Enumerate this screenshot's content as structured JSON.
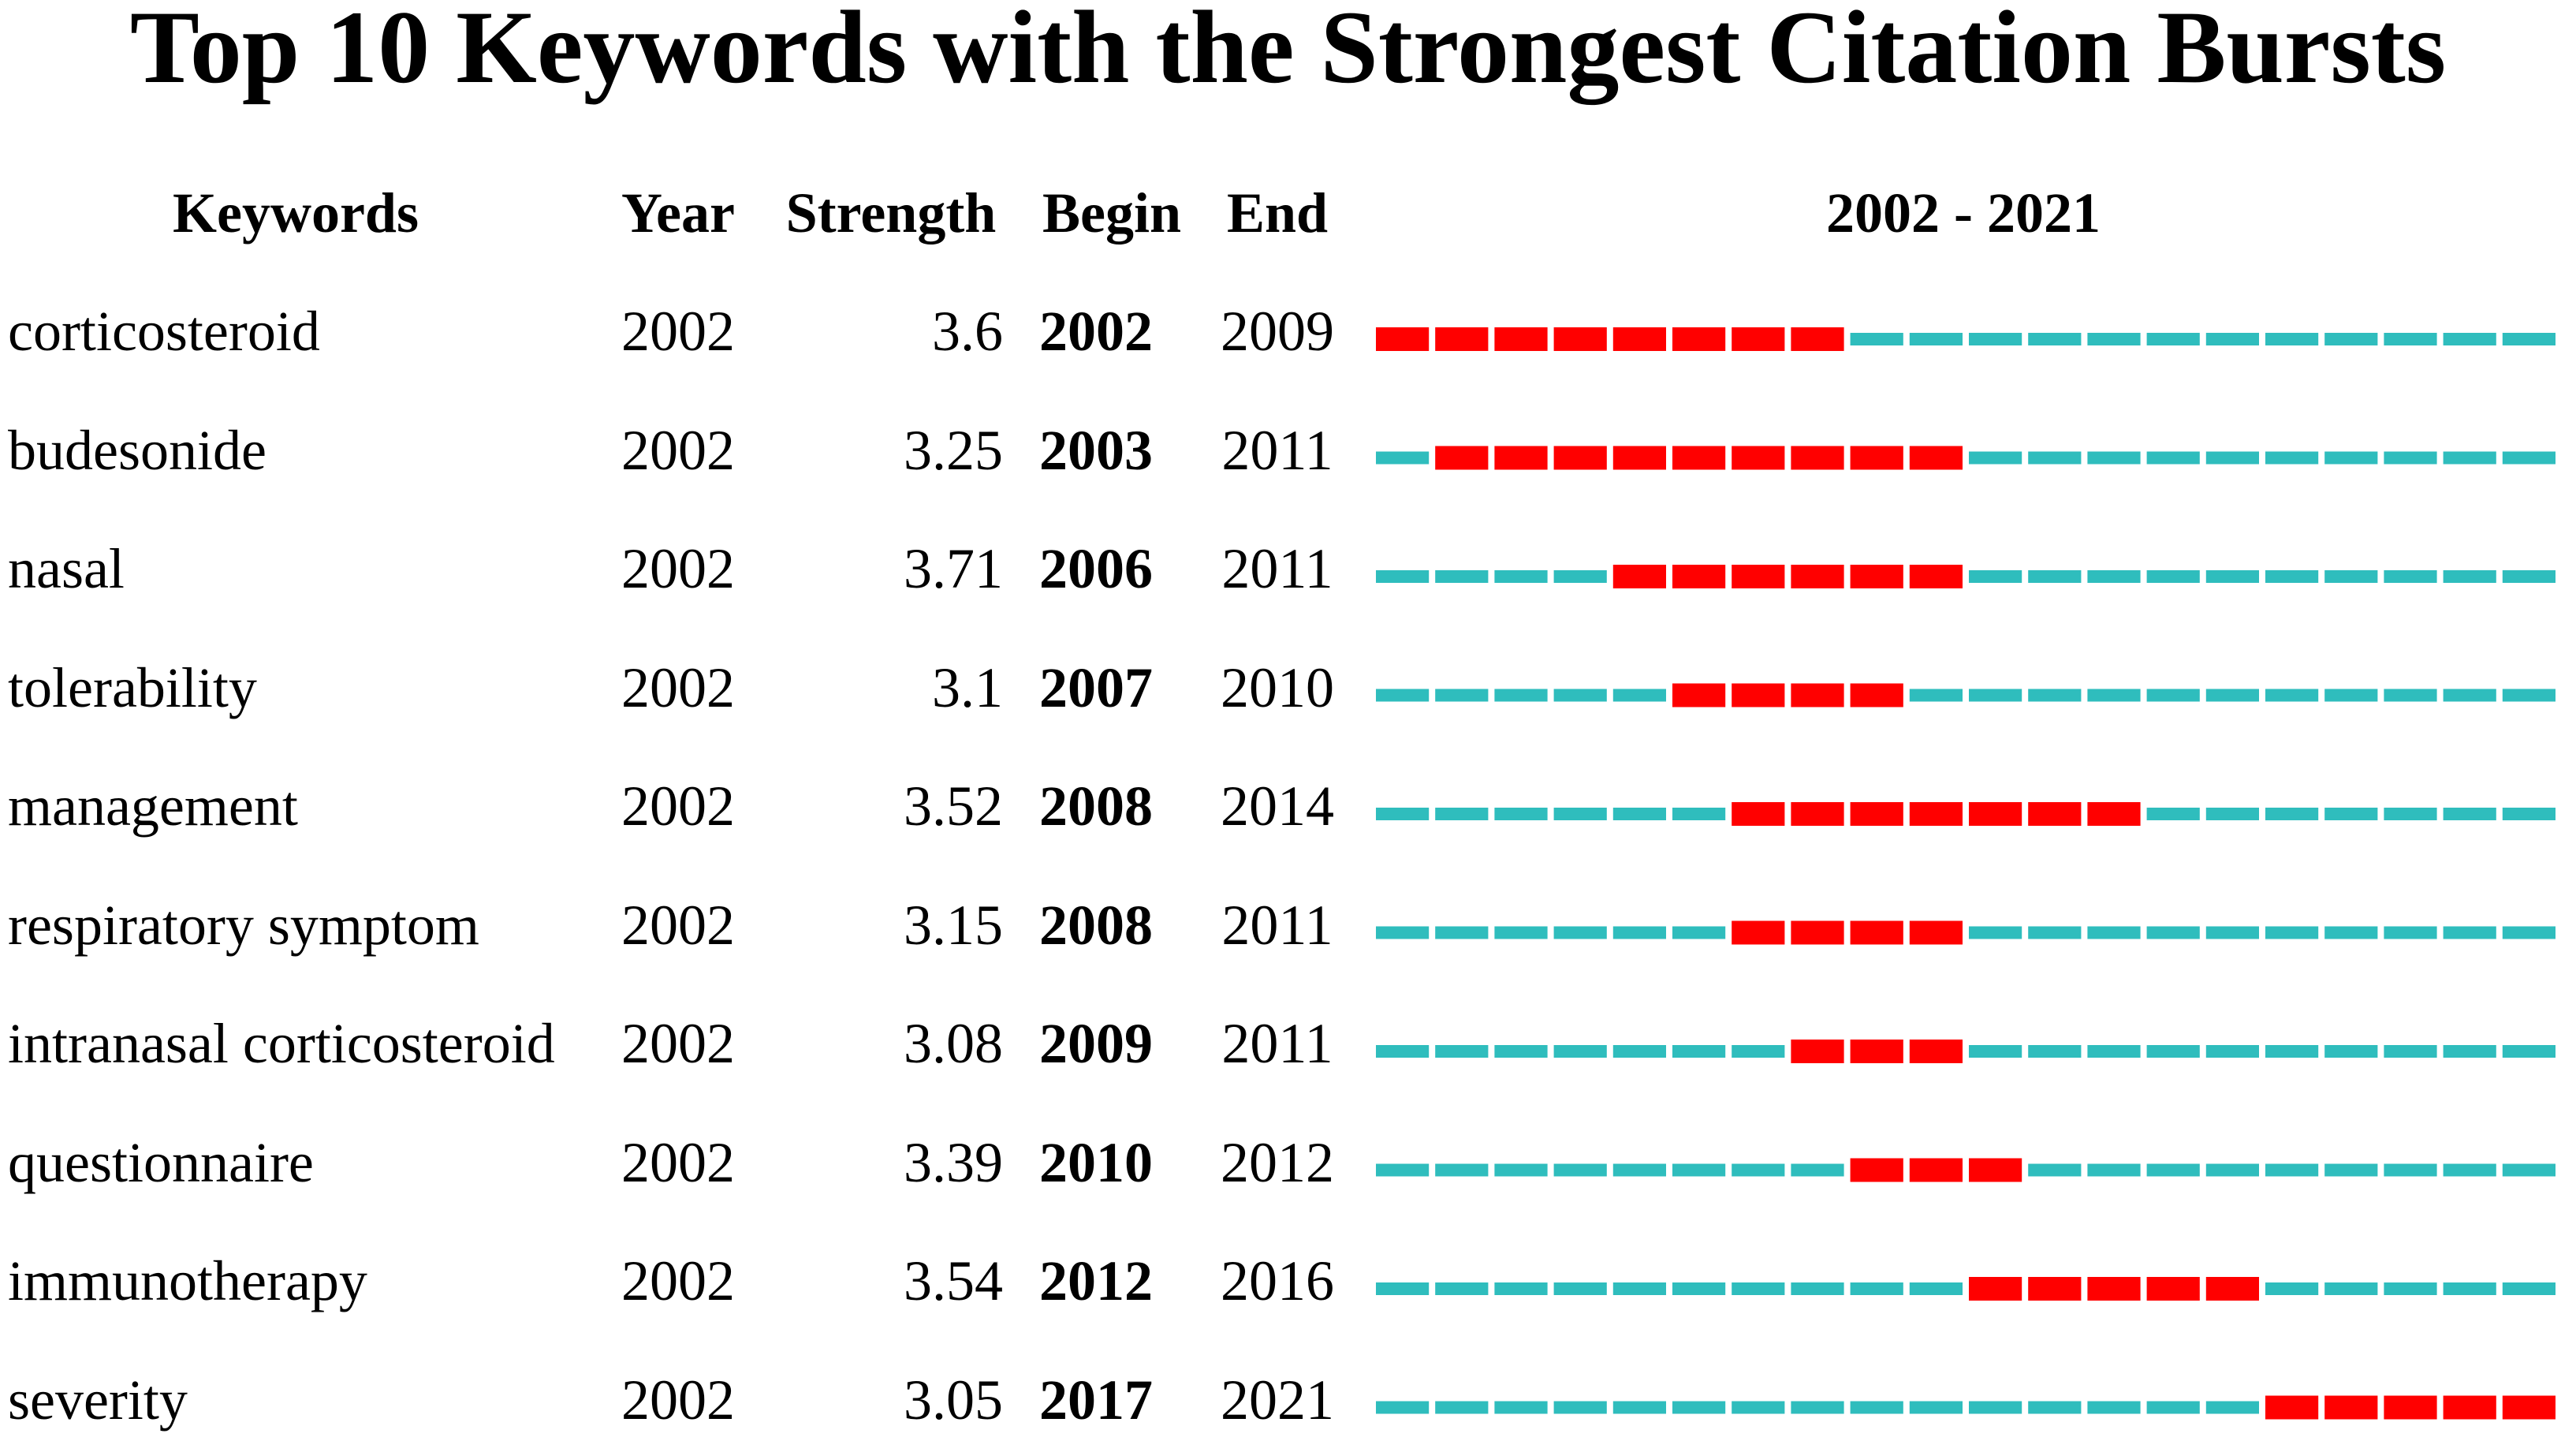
{
  "chart_data": {
    "type": "table",
    "title": "Top 10 Keywords with the Strongest Citation Bursts",
    "columns": [
      "Keywords",
      "Year",
      "Strength",
      "Begin",
      "End",
      "2002 - 2021"
    ],
    "range_start": 2002,
    "range_end": 2021,
    "rows": [
      {
        "keyword": "corticosteroid",
        "year": "2002",
        "strength": "3.6",
        "begin": "2002",
        "end": "2009"
      },
      {
        "keyword": "budesonide",
        "year": "2002",
        "strength": "3.25",
        "begin": "2003",
        "end": "2011"
      },
      {
        "keyword": "nasal",
        "year": "2002",
        "strength": "3.71",
        "begin": "2006",
        "end": "2011"
      },
      {
        "keyword": "tolerability",
        "year": "2002",
        "strength": "3.1",
        "begin": "2007",
        "end": "2010"
      },
      {
        "keyword": "management",
        "year": "2002",
        "strength": "3.52",
        "begin": "2008",
        "end": "2014"
      },
      {
        "keyword": "respiratory symptom",
        "year": "2002",
        "strength": "3.15",
        "begin": "2008",
        "end": "2011"
      },
      {
        "keyword": "intranasal corticosteroid",
        "year": "2002",
        "strength": "3.08",
        "begin": "2009",
        "end": "2011"
      },
      {
        "keyword": "questionnaire",
        "year": "2002",
        "strength": "3.39",
        "begin": "2010",
        "end": "2012"
      },
      {
        "keyword": "immunotherapy",
        "year": "2002",
        "strength": "3.54",
        "begin": "2012",
        "end": "2016"
      },
      {
        "keyword": "severity",
        "year": "2002",
        "strength": "3.05",
        "begin": "2017",
        "end": "2021"
      }
    ],
    "colors": {
      "burst": "#ff0000",
      "baseline": "#2fbdbd",
      "text": "#000000"
    }
  }
}
